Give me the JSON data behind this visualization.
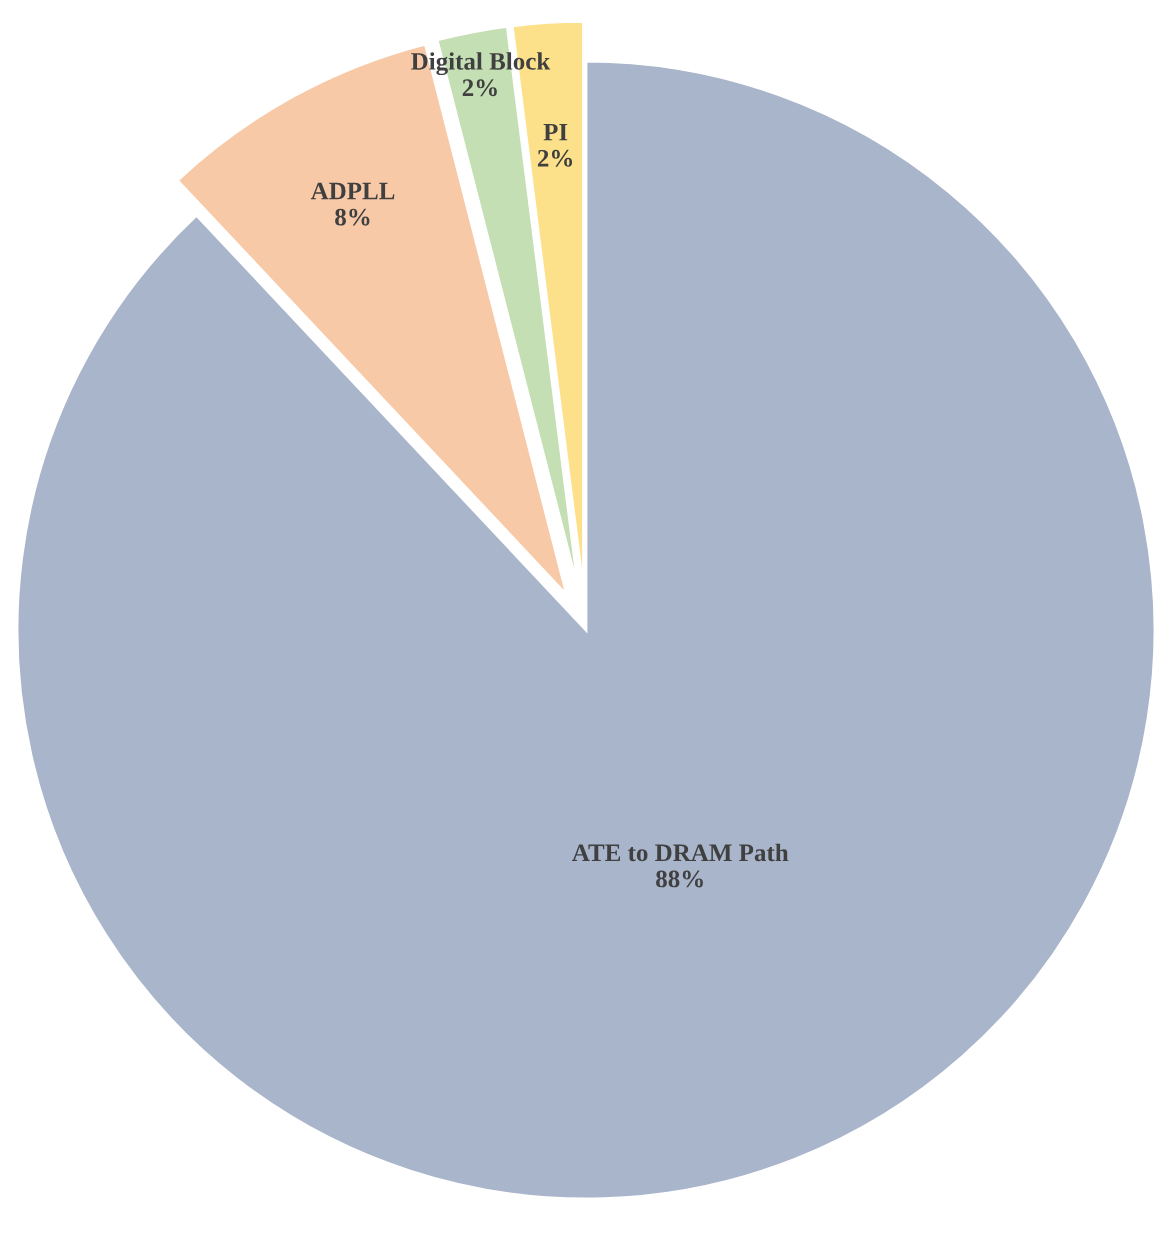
{
  "chart_data": {
    "type": "pie",
    "categories": [
      "ATE to DRAM Path",
      "ADPLL",
      "Digital Block",
      "PI"
    ],
    "values": [
      88,
      8,
      2,
      2
    ],
    "colors": [
      "#a9b5cb",
      "#f8c9a7",
      "#c5dfb5",
      "#fde08a"
    ],
    "value_labels": [
      "88%",
      "8%",
      "2%",
      "2%"
    ]
  }
}
